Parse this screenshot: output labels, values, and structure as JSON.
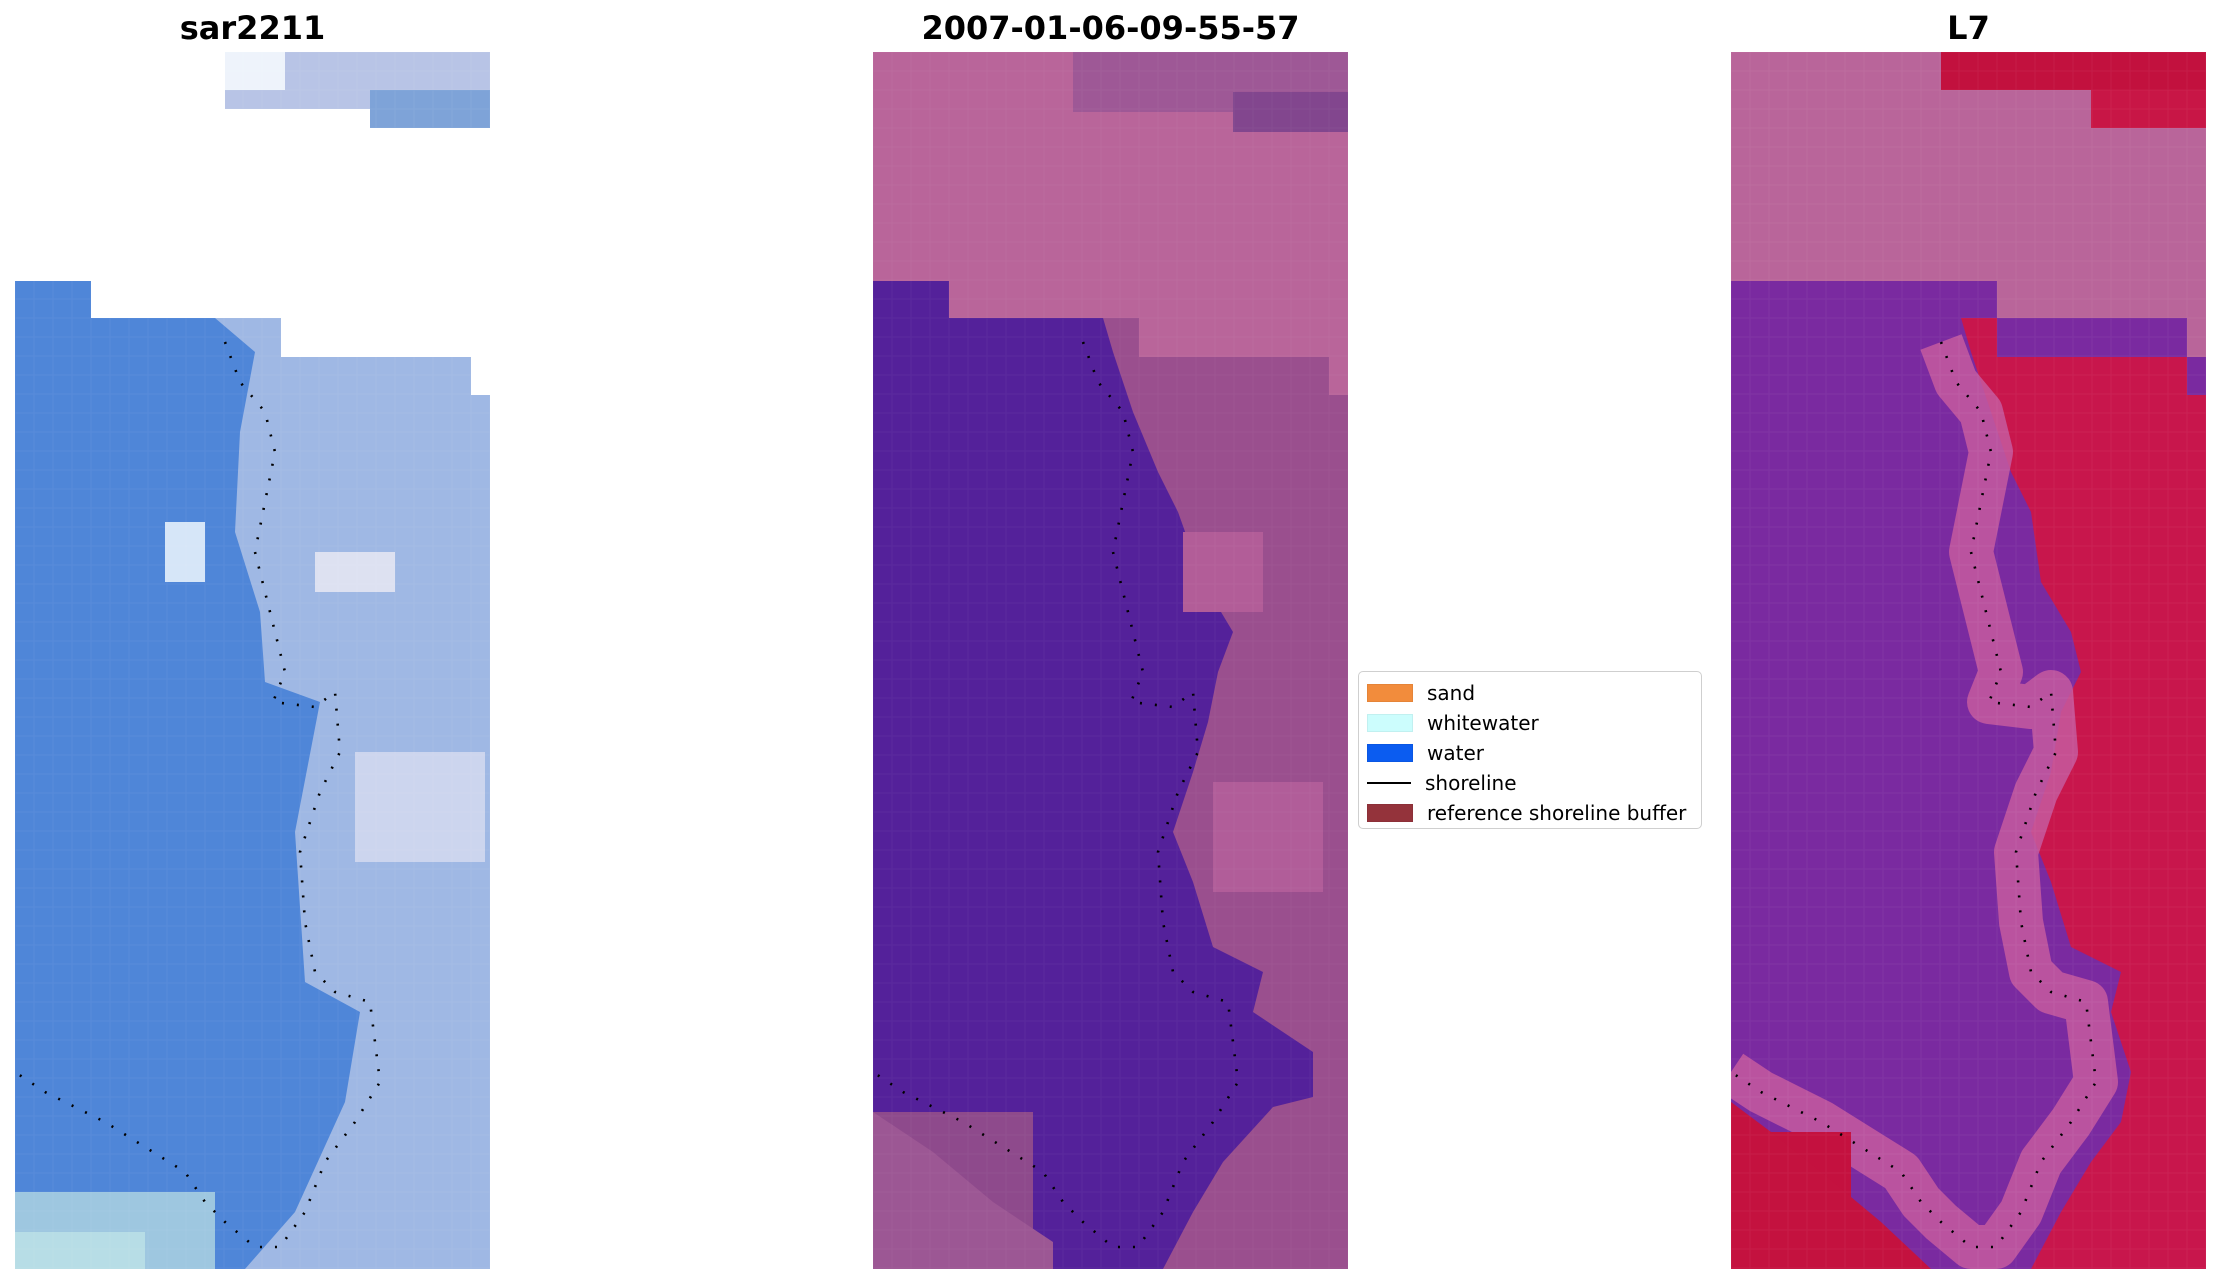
{
  "panels": [
    {
      "title": "sar2211"
    },
    {
      "title": "2007-01-06-09-55-57"
    },
    {
      "title": "L7"
    }
  ],
  "legend": {
    "items": [
      {
        "label": "sand",
        "color": "#f28c3c",
        "kind": "patch"
      },
      {
        "label": "whitewater",
        "color": "#ccfdfd",
        "kind": "patch"
      },
      {
        "label": "water",
        "color": "#0b5cf0",
        "kind": "patch"
      },
      {
        "label": "shoreline",
        "color": "#000000",
        "kind": "line"
      },
      {
        "label": "reference shoreline buffer",
        "color": "#94333b",
        "kind": "patch"
      }
    ]
  },
  "colors": {
    "rgb_water": "#4f86d8",
    "rgb_land": "#a9bfe6",
    "classified_water": "#54219a",
    "classified_land": "#b9659a",
    "l7_water": "#7a2aa0",
    "l7_land": "#c4113f",
    "nodata_overlay": "#b9659a"
  }
}
